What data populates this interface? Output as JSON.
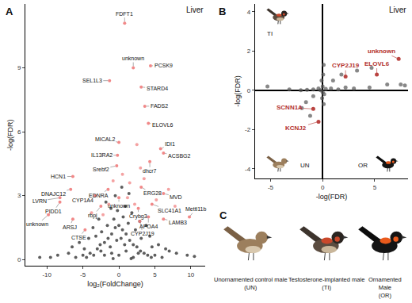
{
  "chart_data": [
    {
      "type": "scatter",
      "panel": "A",
      "annotations": [
        "Liver"
      ],
      "x_label": "log₂(FoldChange)",
      "y_label": "-log(FDR)",
      "xlim": [
        -13,
        12
      ],
      "ylim": [
        -0.3,
        12
      ],
      "xticks": [
        -10,
        -5,
        0,
        5,
        10
      ],
      "yticks": [
        0,
        3,
        6,
        9
      ],
      "grid": false,
      "series": [
        {
          "color": "#1a1a1a",
          "x": [
            -6,
            -5,
            -4.5,
            -4,
            -3.5,
            -3,
            -2.5,
            -2,
            -1.5,
            -1,
            -0.5,
            0,
            0.5,
            1,
            1.5,
            2,
            2.5,
            3,
            3.5,
            4,
            4.5,
            5,
            6,
            -2,
            -1,
            0,
            1,
            2,
            -1.2,
            0.8,
            -0.3,
            0.3,
            -0.7,
            0.6,
            1.3,
            -1.6,
            -2.4,
            2.3,
            -3.2,
            3.1,
            -0.2,
            0.9,
            -1.1,
            1.8,
            -7,
            7,
            -8.5,
            8,
            -5.5,
            5.5,
            -4.2,
            4.3,
            -2.8,
            2.9,
            -1.8,
            1.4,
            -0.5,
            0.4,
            -3.6,
            3.8,
            -6.5,
            6.5,
            -9.5,
            9.5,
            -11,
            10.5,
            -0.8,
            1.7,
            -2.6,
            2.7,
            -4.8,
            4.6
          ],
          "y": [
            0.1,
            0.2,
            0.1,
            0.3,
            0.2,
            0.5,
            0.4,
            0.8,
            1.0,
            1.2,
            1.5,
            1.6,
            1.4,
            1.2,
            0.9,
            0.7,
            0.6,
            0.4,
            0.3,
            0.2,
            0.1,
            0.2,
            0.1,
            0.2,
            0.3,
            0.2,
            0.4,
            0.1,
            0.6,
            0.7,
            0.9,
            1.0,
            1.9,
            2.0,
            1.7,
            1.6,
            1.3,
            1.4,
            1.1,
            1.0,
            2.3,
            2.5,
            2.4,
            2.2,
            0.3,
            0.4,
            0.2,
            0.3,
            0.8,
            0.7,
            1.0,
            1.1,
            1.9,
            1.8,
            2.7,
            3.1,
            3.0,
            3.4,
            1.5,
            1.6,
            0.6,
            0.5,
            0.1,
            0.2,
            0.1,
            0.15,
            0.05,
            0.05,
            0.7,
            0.3,
            0.5,
            0.6
          ]
        },
        {
          "color": "#f07b7b",
          "x": [
            -2.2,
            -1.4,
            2.2,
            1.5,
            0.5,
            3.5,
            6.9,
            5.2,
            7.8,
            -3.8,
            2.5,
            3.0,
            -0.8,
            1.2
          ],
          "y": [
            2.1,
            2.6,
            2.6,
            3.6,
            4.0,
            3.8,
            3.3,
            2.8,
            2.5,
            2.2,
            5.4,
            4.3,
            3.7,
            2.9
          ]
        },
        {
          "color": "#f07b7b",
          "x": [
            0.8,
            2.0,
            4.4,
            -1.3,
            3.1,
            3.6,
            4.1,
            0,
            5.8,
            -0.2,
            6.2,
            -0.3,
            4.3,
            -6.4,
            -6.7,
            -1.5,
            3.1,
            6.2,
            -8.2,
            -3.3,
            0,
            -8.2,
            4.6,
            -2.5,
            2.7,
            9.8,
            -9.8,
            -6.4,
            4.1,
            6.2,
            2.9,
            -4.7
          ],
          "y": [
            11.1,
            9.0,
            9.1,
            8.4,
            8.1,
            7.2,
            6.4,
            5.5,
            5.2,
            4.9,
            5.0,
            4.4,
            4.6,
            3.9,
            3.3,
            3.3,
            3.4,
            3.1,
            2.9,
            3.0,
            2.9,
            2.7,
            2.6,
            2.5,
            2.4,
            2.0,
            2.1,
            1.9,
            2.0,
            1.9,
            1.8,
            1.4
          ],
          "labels": [
            "FDFT1",
            "unknown",
            "PCSK9",
            "SEL1L3",
            "STARD4",
            "FADS2",
            "ELOVL6",
            "MICAL2",
            "IDI1",
            "IL13RA2",
            "ACSBG2",
            "Srebf2",
            "dhcr7",
            "HCN1",
            "DNAJC12",
            "EDNRA",
            "ERG28",
            "MVD",
            "LVRN",
            "CYP1A4",
            "unknown",
            "PIDD1",
            "SLC41A1",
            "rbpj",
            "Crybg3",
            "Mettl11b",
            "unknown",
            "ARSJ",
            "APOA4",
            "LAMB3",
            "CYP2J19",
            "CTSE"
          ]
        }
      ]
    },
    {
      "type": "scatter",
      "panel": "B",
      "annotations": [
        "Liver"
      ],
      "group_labels": [
        "TI",
        "UN",
        "OR"
      ],
      "x_label": "-log(FDR)",
      "y_label": "-log(FDR)",
      "xlim": [
        -6.5,
        8.2
      ],
      "ylim": [
        -4.5,
        4.4
      ],
      "xticks": [
        -5,
        0,
        5
      ],
      "yticks": [
        -4,
        -2,
        0,
        2,
        4
      ],
      "grid": false,
      "series": [
        {
          "color": "#555555",
          "x": [
            -5.3,
            -3.2,
            -2.1,
            -1.5,
            -0.9,
            -0.4,
            0.3,
            0.8,
            1.5,
            2.2,
            3.0,
            4.5,
            6.2,
            7.5,
            7.9,
            0.05,
            0.1,
            -0.05,
            0.1,
            -0.1,
            4.7,
            3.3,
            -2.0,
            -1.6,
            -0.9,
            1.0,
            1.8,
            -1.2,
            0.0,
            0.0,
            0.15,
            -0.2
          ],
          "y": [
            0.2,
            0.05,
            0.0,
            0.02,
            0.05,
            0.1,
            0.08,
            0.1,
            0.05,
            0.15,
            0.1,
            0.15,
            0.3,
            0.3,
            0.25,
            0.8,
            1.3,
            -0.4,
            -0.7,
            0.5,
            1.15,
            1.0,
            -0.9,
            -0.6,
            -0.3,
            0.5,
            0.8,
            -1.3,
            -0.1,
            0.2,
            -0.2,
            0.0
          ]
        },
        {
          "color": "#b3302c",
          "x": [
            7.3,
            5.2,
            2.2,
            -0.9,
            -0.4
          ],
          "y": [
            1.6,
            0.8,
            0.7,
            -0.95,
            -1.6
          ],
          "labels": [
            "unknown",
            "ELOVL6",
            "CYP2J19",
            "SCNN1A",
            "KCNJ2"
          ]
        }
      ]
    }
  ],
  "panel_c": {
    "panel": "C",
    "captions": [
      [
        "Unornamented control male",
        "(UN)"
      ],
      [
        "Testosterone-implanted male",
        "(TI)"
      ],
      [
        "Ornamented",
        "Male",
        "(OR)"
      ]
    ]
  }
}
